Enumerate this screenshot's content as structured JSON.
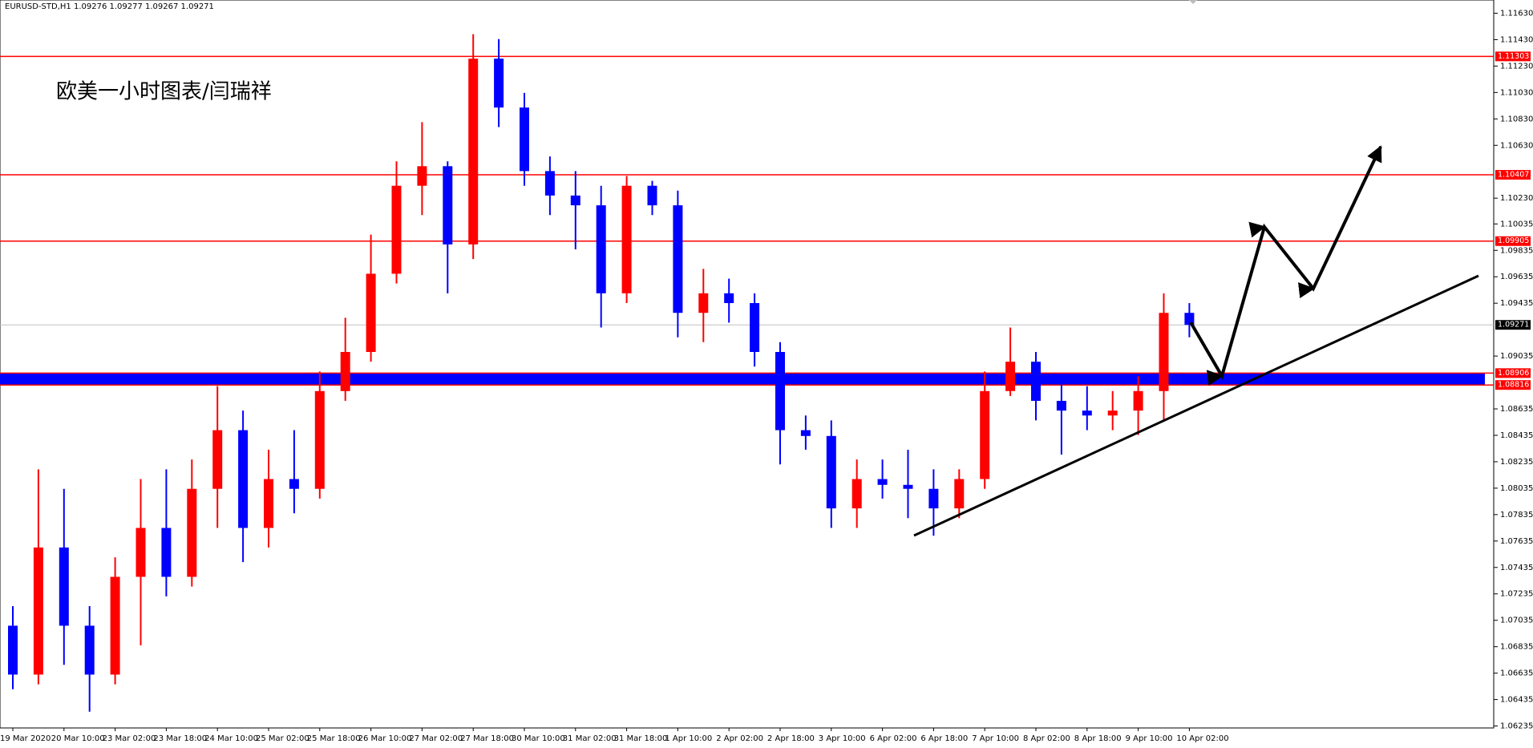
{
  "chart_data": {
    "type": "candlestick",
    "header": "EURUSD-STD,H1  1.09276 1.09277 1.09267 1.09271",
    "annotation": "欧美一小时图表/闫瑞祥",
    "categories": [
      "19 Mar 2020",
      null,
      "20 Mar 10:00",
      null,
      "23 Mar 02:00",
      null,
      "23 Mar 18:00",
      null,
      "24 Mar 10:00",
      null,
      "25 Mar 02:00",
      null,
      "25 Mar 18:00",
      null,
      "26 Mar 10:00",
      null,
      "27 Mar 02:00",
      null,
      "27 Mar 18:00",
      null,
      "30 Mar 10:00",
      null,
      "31 Mar 02:00",
      null,
      "31 Mar 18:00",
      null,
      "1 Apr 10:00",
      null,
      "2 Apr 02:00",
      null,
      "2 Apr 18:00",
      null,
      "3 Apr 10:00",
      null,
      "6 Apr 02:00",
      null,
      "6 Apr 18:00",
      null,
      "7 Apr 10:00",
      null,
      "8 Apr 02:00",
      null,
      "8 Apr 18:00",
      null,
      "9 Apr 10:00",
      null,
      "10 Apr 02:00"
    ],
    "open": [
      1.06994,
      1.06624,
      1.07586,
      1.06994,
      1.06624,
      1.07364,
      1.07734,
      1.07364,
      1.0803,
      1.08474,
      1.07734,
      1.08104,
      1.0803,
      1.0877,
      1.09066,
      1.09658,
      1.10324,
      1.10472,
      1.0988,
      1.11286,
      1.10916,
      1.10435,
      1.1025,
      1.10176,
      1.0951,
      1.10324,
      1.10176,
      1.09362,
      1.0951,
      1.09436,
      1.09066,
      1.08474,
      1.0843,
      1.07882,
      1.08104,
      1.0806,
      1.0803,
      1.07882,
      1.08104,
      1.0877,
      1.08992,
      1.08696,
      1.08622,
      1.08585,
      1.08622,
      1.0877,
      1.09362
    ],
    "high": [
      1.07142,
      1.08178,
      1.0803,
      1.07142,
      1.07512,
      1.08104,
      1.08178,
      1.08252,
      1.08807,
      1.08622,
      1.08326,
      1.08474,
      1.08918,
      1.09325,
      1.09954,
      1.10509,
      1.10805,
      1.10509,
      1.11471,
      1.11434,
      1.11027,
      1.10546,
      1.10435,
      1.10324,
      1.10398,
      1.10361,
      1.10287,
      1.09695,
      1.09621,
      1.0951,
      1.0914,
      1.08585,
      1.08548,
      1.08252,
      1.08252,
      1.08326,
      1.08178,
      1.08178,
      1.08918,
      1.09251,
      1.09066,
      1.08881,
      1.08807,
      1.0877,
      1.08881,
      1.0951,
      1.09436
    ],
    "low": [
      1.06513,
      1.0655,
      1.06698,
      1.06343,
      1.0655,
      1.06846,
      1.07216,
      1.0729,
      1.07734,
      1.07475,
      1.07586,
      1.07845,
      1.07956,
      1.08696,
      1.08992,
      1.09584,
      1.10102,
      1.0951,
      1.09769,
      1.10768,
      1.10324,
      1.10102,
      1.09843,
      1.09251,
      1.09436,
      1.10102,
      1.09177,
      1.0914,
      1.09288,
      1.08955,
      1.08215,
      1.08326,
      1.07734,
      1.07734,
      1.07956,
      1.07808,
      1.07675,
      1.07808,
      1.0803,
      1.08733,
      1.08548,
      1.08289,
      1.08474,
      1.08474,
      1.08437,
      1.08548,
      1.09177
    ],
    "close": [
      1.06624,
      1.07586,
      1.06994,
      1.06624,
      1.07364,
      1.07734,
      1.07364,
      1.0803,
      1.08474,
      1.07734,
      1.08104,
      1.0803,
      1.0877,
      1.09066,
      1.09658,
      1.10324,
      1.10472,
      1.0988,
      1.11286,
      1.10916,
      1.10435,
      1.1025,
      1.10176,
      1.0951,
      1.10324,
      1.10176,
      1.09362,
      1.0951,
      1.09436,
      1.09066,
      1.08474,
      1.0843,
      1.07882,
      1.08104,
      1.0806,
      1.0803,
      1.07882,
      1.08104,
      1.0877,
      1.08992,
      1.08696,
      1.08622,
      1.08585,
      1.08622,
      1.0877,
      1.09362,
      1.09271
    ],
    "up_color": "#ff0000",
    "down_color": "#0000ff",
    "ylim": [
      1.0622,
      1.1173
    ],
    "yticks": [
      {
        "value": 1.1163,
        "label": "1.11630"
      },
      {
        "value": 1.1143,
        "label": "1.11430"
      },
      {
        "value": 1.1123,
        "label": "1.11230"
      },
      {
        "value": 1.1103,
        "label": "1.11030"
      },
      {
        "value": 1.1083,
        "label": "1.10830"
      },
      {
        "value": 1.1063,
        "label": "1.10630"
      },
      {
        "value": 1.1023,
        "label": "1.10230"
      },
      1.10035,
      1.09835,
      1.09635,
      1.09435,
      1.09035,
      1.08635,
      1.08435,
      1.08235,
      1.08035,
      1.07835,
      1.07635,
      1.07435,
      1.07235,
      1.07035,
      1.06835,
      1.06635,
      1.06435,
      1.06235
    ],
    "levels": [
      1.11303,
      1.10407,
      1.09905,
      1.08906,
      1.08816
    ],
    "level_color": "#ff0000",
    "zone": [
      1.08816,
      1.08906
    ],
    "zone_color": "#0000ff",
    "current_price": 1.09271
  }
}
